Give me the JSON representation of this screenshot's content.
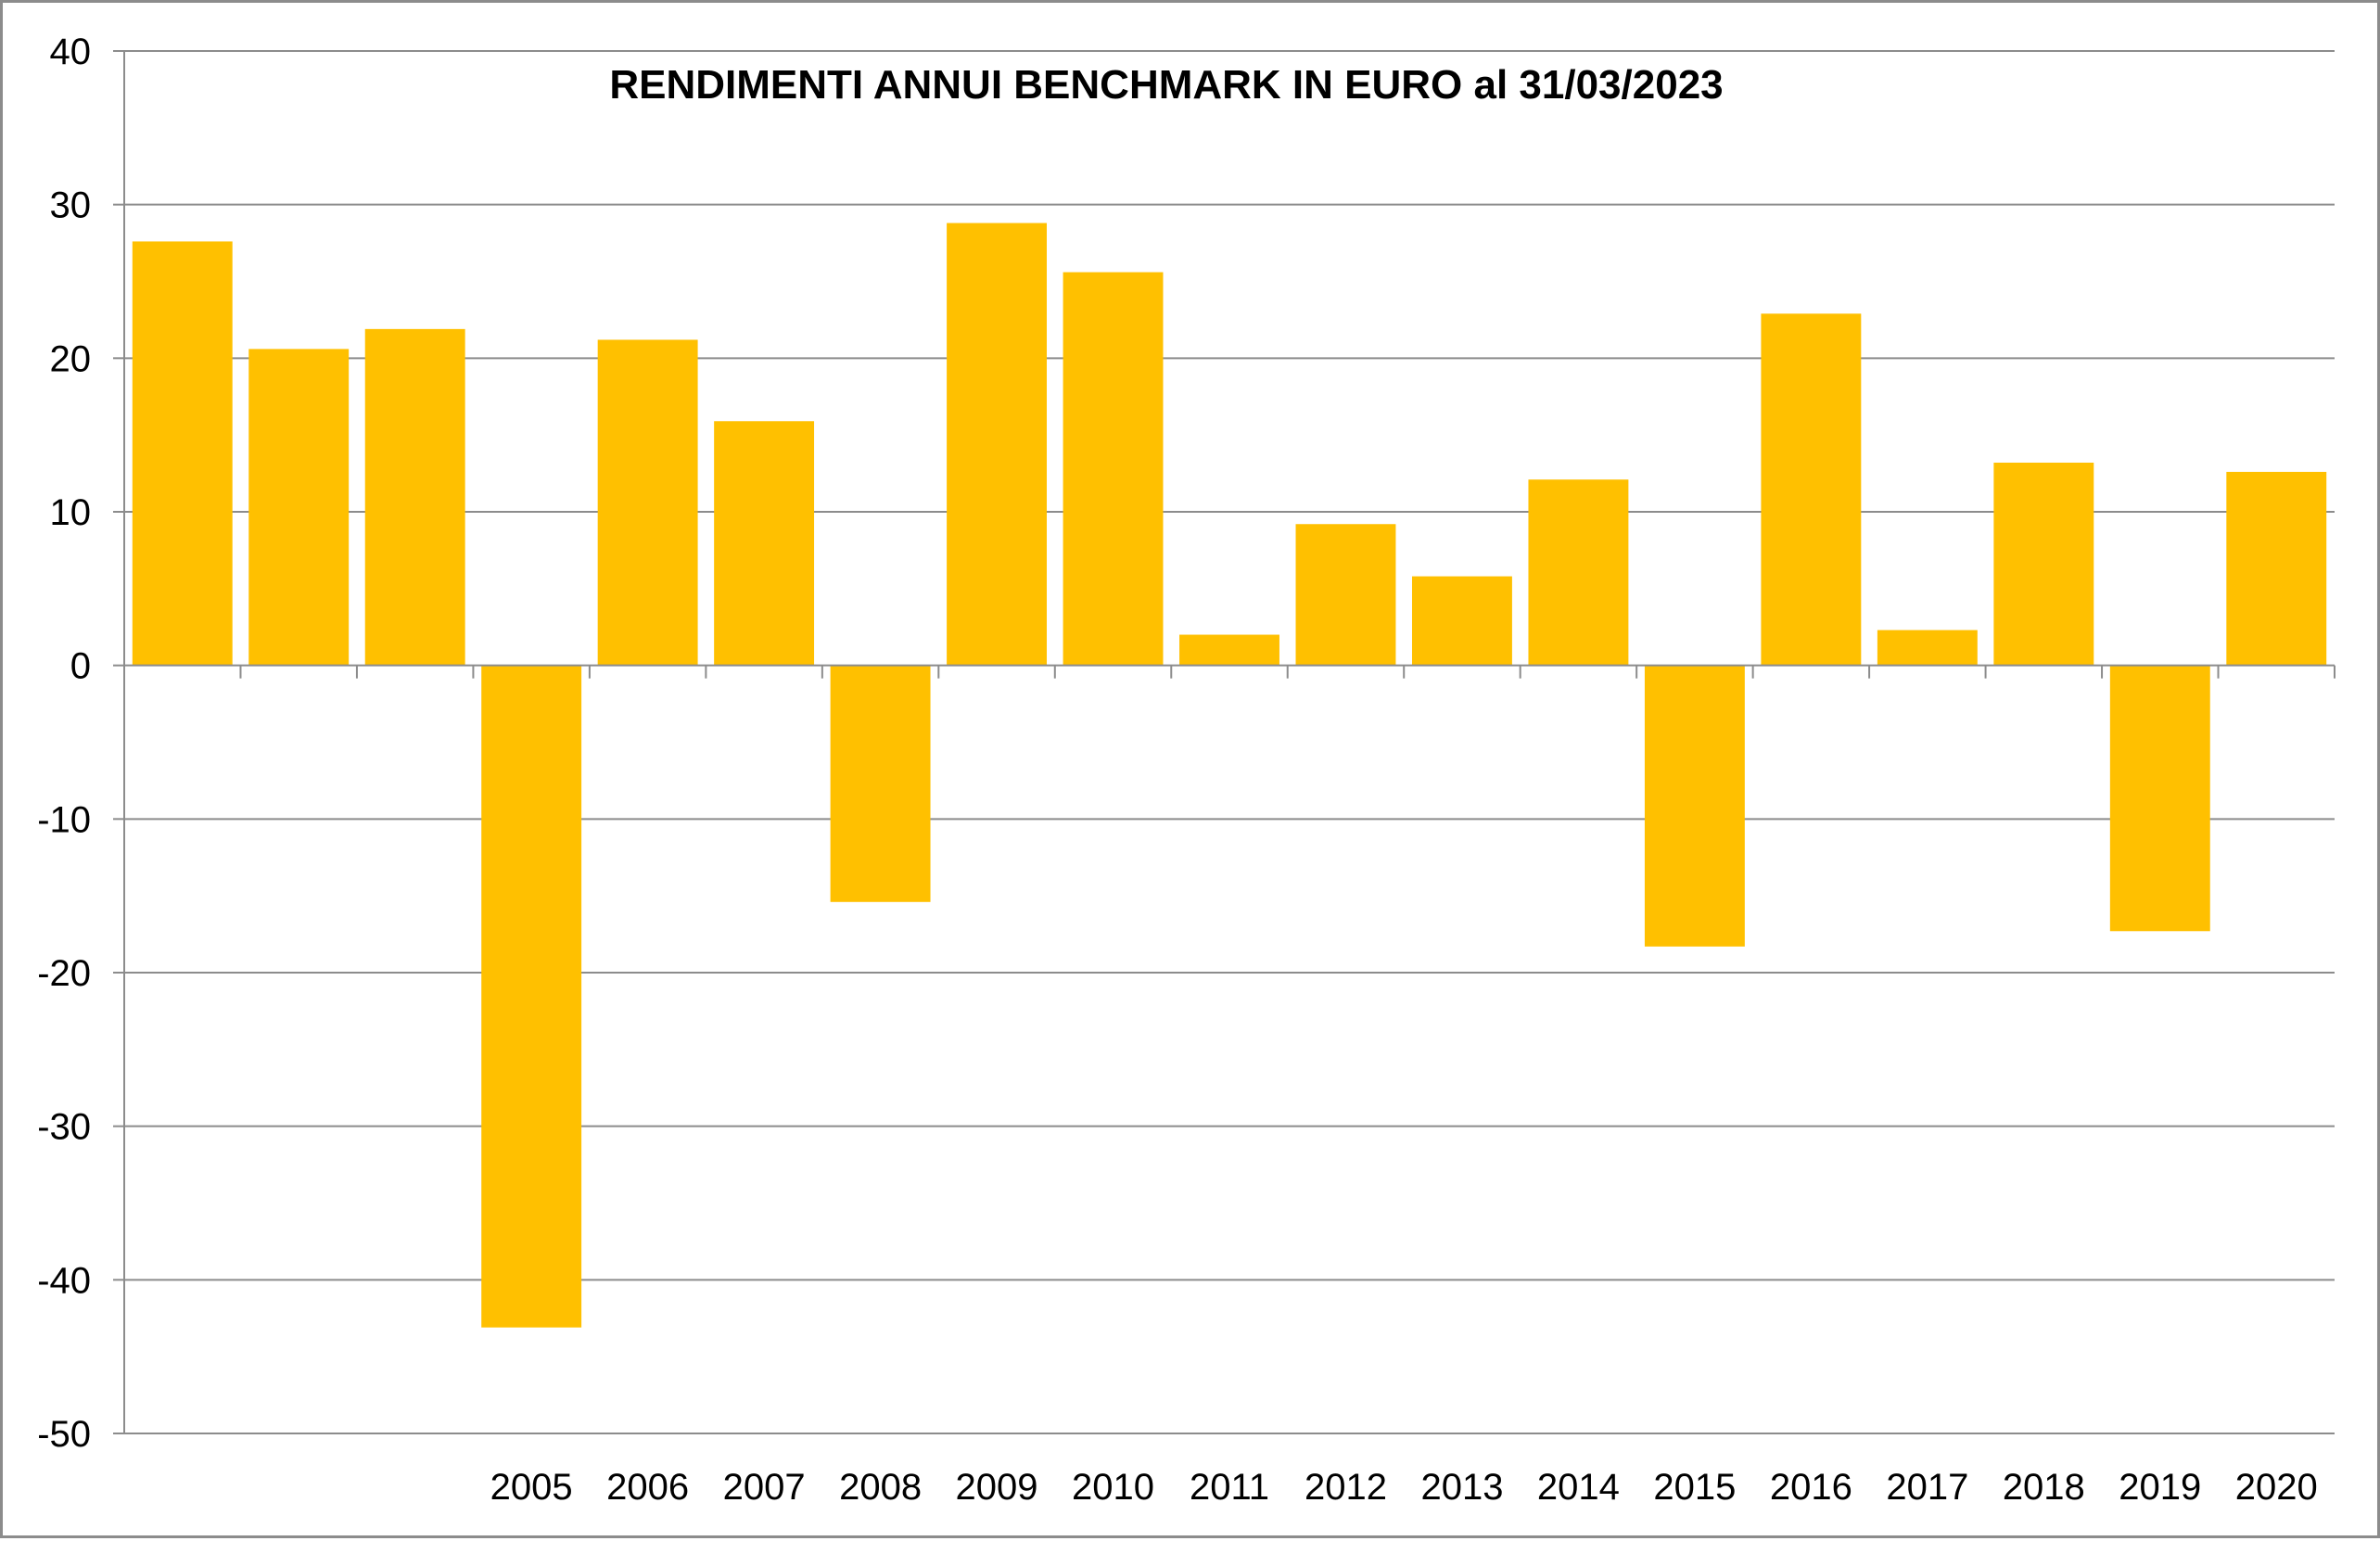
{
  "chart_data": {
    "type": "bar",
    "title": "RENDIMENTI ANNUI BENCHMARK IN EURO al 31/03/2023",
    "xlabel": "",
    "ylabel": "",
    "ylim": [
      -50,
      40
    ],
    "yticks": [
      40,
      30,
      20,
      10,
      0,
      -10,
      -20,
      -30,
      -40,
      -50
    ],
    "ytick_labels": [
      "40",
      "30",
      "20",
      "10",
      "0",
      "-10",
      "-20",
      "-30",
      "-40",
      "-50"
    ],
    "categories": [
      "",
      "",
      "",
      "2005",
      "2006",
      "2007",
      "2008",
      "2009",
      "2010",
      "2011",
      "2012",
      "2013",
      "2014",
      "2015",
      "2016",
      "2017",
      "2018",
      "2019",
      "2020"
    ],
    "values": [
      27.6,
      20.6,
      21.9,
      -43.1,
      21.2,
      15.9,
      -15.4,
      28.8,
      25.6,
      2.0,
      9.2,
      5.8,
      12.1,
      -18.3,
      22.9,
      2.3,
      13.2,
      -17.3,
      12.6
    ],
    "grid": true,
    "legend": "none",
    "bar_color": "#FFC000",
    "grid_color": "#8c8c8c",
    "axis_color": "#8c8c8c"
  }
}
